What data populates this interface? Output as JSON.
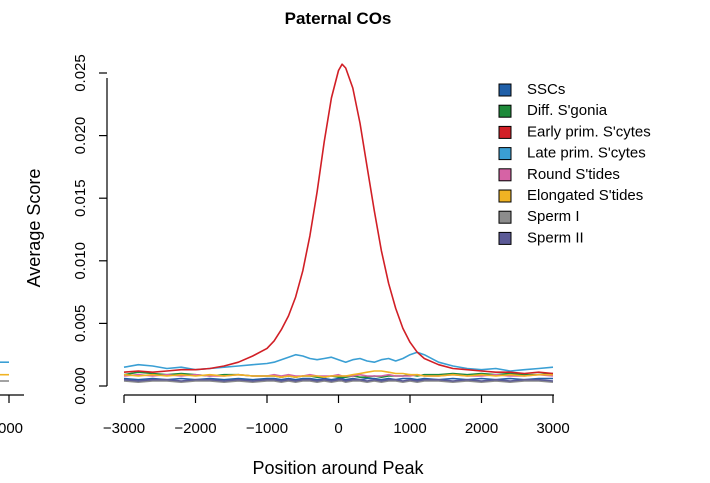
{
  "chart_data": {
    "type": "line",
    "title": "Paternal COs",
    "xlabel": "Position around Peak",
    "ylabel": "Average Score",
    "xlim": [
      -3000,
      3000
    ],
    "ylim": [
      0,
      0.025
    ],
    "x_ticks": [
      -3000,
      -2000,
      -1000,
      0,
      1000,
      2000,
      3000
    ],
    "x_tick_labels": [
      "−3000",
      "−2000",
      "−1000",
      "0",
      "1000",
      "2000",
      "3000"
    ],
    "y_ticks": [
      0,
      0.005,
      0.01,
      0.015,
      0.02,
      0.025
    ],
    "y_tick_labels": [
      "0.000",
      "0.005",
      "0.010",
      "0.015",
      "0.020",
      "0.025"
    ],
    "legend_position": "top-right",
    "side_panel": {
      "tick_label": "000",
      "series_tails": [
        {
          "name": "Late prim. S'cytes",
          "values": [
            0.0019,
            0.0019
          ]
        },
        {
          "name": "Elongated S'tides",
          "values": [
            0.0009,
            0.0009
          ]
        },
        {
          "name": "Sperm I",
          "values": [
            0.0004,
            0.0004
          ]
        }
      ]
    },
    "x": [
      -3000,
      -2800,
      -2600,
      -2400,
      -2200,
      -2000,
      -1800,
      -1600,
      -1400,
      -1200,
      -1000,
      -900,
      -800,
      -700,
      -600,
      -500,
      -400,
      -300,
      -200,
      -100,
      0,
      50,
      100,
      200,
      300,
      400,
      500,
      600,
      700,
      800,
      900,
      1000,
      1100,
      1200,
      1400,
      1600,
      1800,
      2000,
      2200,
      2400,
      2600,
      2800,
      3000
    ],
    "series": [
      {
        "name": "SSCs",
        "color": "#1f5fa8",
        "values": [
          0.0006,
          0.0005,
          0.0006,
          0.0005,
          0.0006,
          0.0005,
          0.0006,
          0.0005,
          0.0006,
          0.0005,
          0.0006,
          0.0006,
          0.0005,
          0.0006,
          0.0005,
          0.0006,
          0.0006,
          0.0005,
          0.0006,
          0.0005,
          0.0006,
          0.0006,
          0.0005,
          0.0006,
          0.0005,
          0.0006,
          0.0006,
          0.0005,
          0.0006,
          0.0005,
          0.0006,
          0.0006,
          0.0005,
          0.0006,
          0.0005,
          0.0006,
          0.0005,
          0.0006,
          0.0005,
          0.0006,
          0.0005,
          0.0006,
          0.0006
        ]
      },
      {
        "name": "Diff. S'gonia",
        "color": "#1e8a3a",
        "values": [
          0.0009,
          0.0011,
          0.001,
          0.0009,
          0.001,
          0.0009,
          0.0008,
          0.0009,
          0.0009,
          0.0008,
          0.0008,
          0.0008,
          0.0007,
          0.0008,
          0.0007,
          0.0008,
          0.0008,
          0.0007,
          0.0007,
          0.0008,
          0.0007,
          0.0007,
          0.0007,
          0.0008,
          0.0007,
          0.0007,
          0.0008,
          0.0007,
          0.0008,
          0.0008,
          0.0008,
          0.0009,
          0.0008,
          0.0009,
          0.0009,
          0.001,
          0.0009,
          0.001,
          0.0009,
          0.001,
          0.0009,
          0.0009,
          0.001
        ]
      },
      {
        "name": "Early prim. S'cytes",
        "color": "#d11f26",
        "values": [
          0.0011,
          0.0012,
          0.0011,
          0.0012,
          0.0013,
          0.0013,
          0.0014,
          0.0016,
          0.0019,
          0.0024,
          0.003,
          0.0036,
          0.0045,
          0.0056,
          0.0071,
          0.0092,
          0.012,
          0.0155,
          0.0195,
          0.023,
          0.0252,
          0.0257,
          0.0254,
          0.0238,
          0.021,
          0.0175,
          0.014,
          0.0108,
          0.0082,
          0.0062,
          0.0046,
          0.0035,
          0.0027,
          0.0022,
          0.0017,
          0.0014,
          0.0013,
          0.0012,
          0.0011,
          0.0011,
          0.001,
          0.0011,
          0.001
        ]
      },
      {
        "name": "Late prim. S'cytes",
        "color": "#3a9fd4",
        "values": [
          0.0015,
          0.0017,
          0.0016,
          0.0014,
          0.0015,
          0.0013,
          0.0014,
          0.0015,
          0.0016,
          0.0017,
          0.0018,
          0.0019,
          0.0021,
          0.0023,
          0.0025,
          0.0024,
          0.0022,
          0.0021,
          0.0022,
          0.0023,
          0.0021,
          0.002,
          0.0019,
          0.0021,
          0.0022,
          0.002,
          0.0019,
          0.0021,
          0.0022,
          0.002,
          0.0022,
          0.0025,
          0.0027,
          0.0025,
          0.0019,
          0.0016,
          0.0014,
          0.0013,
          0.0014,
          0.0012,
          0.0013,
          0.0014,
          0.0015
        ]
      },
      {
        "name": "Round S'tides",
        "color": "#d663a5",
        "values": [
          0.0008,
          0.0009,
          0.0008,
          0.0009,
          0.0008,
          0.0009,
          0.0008,
          0.0008,
          0.0009,
          0.0008,
          0.0008,
          0.0009,
          0.0008,
          0.0009,
          0.0008,
          0.0008,
          0.0009,
          0.0008,
          0.0008,
          0.0008,
          0.0009,
          0.0008,
          0.0008,
          0.0008,
          0.0009,
          0.0008,
          0.0008,
          0.0008,
          0.0009,
          0.0008,
          0.0008,
          0.0008,
          0.0009,
          0.0008,
          0.0008,
          0.0009,
          0.0008,
          0.0008,
          0.0009,
          0.0008,
          0.0008,
          0.0009,
          0.0008
        ]
      },
      {
        "name": "Elongated S'tides",
        "color": "#f0b323",
        "values": [
          0.0009,
          0.0008,
          0.0009,
          0.0008,
          0.0009,
          0.0008,
          0.0009,
          0.0008,
          0.0009,
          0.0008,
          0.0008,
          0.0008,
          0.0007,
          0.0008,
          0.0007,
          0.0008,
          0.0008,
          0.0008,
          0.0007,
          0.0008,
          0.0008,
          0.0008,
          0.0008,
          0.0009,
          0.001,
          0.0011,
          0.0012,
          0.0012,
          0.0011,
          0.001,
          0.001,
          0.0009,
          0.0009,
          0.0008,
          0.0008,
          0.0009,
          0.0008,
          0.0009,
          0.0008,
          0.0009,
          0.0008,
          0.0009,
          0.0009
        ]
      },
      {
        "name": "Sperm I",
        "color": "#8c8c8c",
        "values": [
          0.0004,
          0.0003,
          0.0004,
          0.0004,
          0.0003,
          0.0004,
          0.0004,
          0.0003,
          0.0004,
          0.0003,
          0.0004,
          0.0004,
          0.0003,
          0.0004,
          0.0003,
          0.0004,
          0.0004,
          0.0003,
          0.0004,
          0.0003,
          0.0004,
          0.0004,
          0.0003,
          0.0004,
          0.0004,
          0.0003,
          0.0004,
          0.0003,
          0.0004,
          0.0004,
          0.0003,
          0.0004,
          0.0003,
          0.0004,
          0.0004,
          0.0003,
          0.0004,
          0.0003,
          0.0004,
          0.0003,
          0.0004,
          0.0004,
          0.0003
        ]
      },
      {
        "name": "Sperm II",
        "color": "#5b5a96",
        "values": [
          0.0005,
          0.0004,
          0.0005,
          0.0005,
          0.0004,
          0.0005,
          0.0005,
          0.0004,
          0.0005,
          0.0004,
          0.0005,
          0.0005,
          0.0004,
          0.0005,
          0.0004,
          0.0005,
          0.0005,
          0.0004,
          0.0005,
          0.0004,
          0.0005,
          0.0005,
          0.0004,
          0.0005,
          0.0005,
          0.0004,
          0.0005,
          0.0004,
          0.0005,
          0.0005,
          0.0004,
          0.0005,
          0.0004,
          0.0005,
          0.0005,
          0.0004,
          0.0005,
          0.0004,
          0.0005,
          0.0004,
          0.0005,
          0.0005,
          0.0004
        ]
      }
    ]
  }
}
